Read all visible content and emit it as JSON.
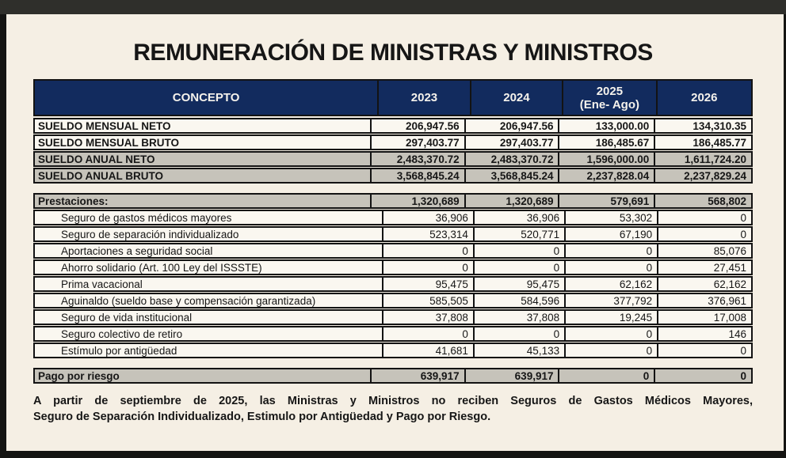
{
  "page": {
    "title": "REMUNERACIÓN DE MINISTRAS Y MINISTROS"
  },
  "colors": {
    "background": "#f5efe4",
    "frame_top": "#2f2f2b",
    "frame_dark": "#141412",
    "header_bg": "#122b5e",
    "header_text": "#f5f2ec",
    "row_light": "#faf7f0",
    "row_gray": "#c6c3ba",
    "border": "#131313",
    "text": "#161616"
  },
  "table": {
    "columns": [
      {
        "label": "CONCEPTO"
      },
      {
        "label": "2023"
      },
      {
        "label": "2024"
      },
      {
        "label": "2025",
        "sublabel": "(Ene- Ago)"
      },
      {
        "label": "2026"
      }
    ],
    "salary_rows": [
      {
        "concept": "SUELDO MENSUAL NETO",
        "values": [
          "206,947.56",
          "206,947.56",
          "133,000.00",
          "134,310.35"
        ],
        "shade": "light"
      },
      {
        "concept": "SUELDO MENSUAL BRUTO",
        "values": [
          "297,403.77",
          "297,403.77",
          "186,485.67",
          "186,485.77"
        ],
        "shade": "light"
      },
      {
        "concept": "SUELDO ANUAL NETO",
        "values": [
          "2,483,370.72",
          "2,483,370.72",
          "1,596,000.00",
          "1,611,724.20"
        ],
        "shade": "gray"
      },
      {
        "concept": "SUELDO ANUAL BRUTO",
        "values": [
          "3,568,845.24",
          "3,568,845.24",
          "2,237,828.04",
          "2,237,829.24"
        ],
        "shade": "gray"
      }
    ],
    "prestaciones": {
      "header": {
        "concept": "Prestaciones:",
        "values": [
          "1,320,689",
          "1,320,689",
          "579,691",
          "568,802"
        ]
      },
      "rows": [
        {
          "concept": "Seguro de gastos médicos mayores",
          "values": [
            "36,906",
            "36,906",
            "53,302",
            "0"
          ]
        },
        {
          "concept": "Seguro de separación individualizado",
          "values": [
            "523,314",
            "520,771",
            "67,190",
            "0"
          ]
        },
        {
          "concept": "Aportaciones a seguridad social",
          "values": [
            "0",
            "0",
            "0",
            "85,076"
          ]
        },
        {
          "concept": "Ahorro solidario (Art. 100 Ley del ISSSTE)",
          "values": [
            "0",
            "0",
            "0",
            "27,451"
          ]
        },
        {
          "concept": "Prima vacacional",
          "values": [
            "95,475",
            "95,475",
            "62,162",
            "62,162"
          ]
        },
        {
          "concept": "Aguinaldo (sueldo base y compensación garantizada)",
          "values": [
            "585,505",
            "584,596",
            "377,792",
            "376,961"
          ]
        },
        {
          "concept": "Seguro de vida institucional",
          "values": [
            "37,808",
            "37,808",
            "19,245",
            "17,008"
          ]
        },
        {
          "concept": "Seguro colectivo de retiro",
          "values": [
            "0",
            "0",
            "0",
            "146"
          ]
        },
        {
          "concept": "Estímulo por antigüedad",
          "values": [
            "41,681",
            "45,133",
            "0",
            "0"
          ]
        }
      ]
    },
    "pago_por_riesgo": {
      "concept": "Pago por riesgo",
      "values": [
        "639,917",
        "639,917",
        "0",
        "0"
      ]
    }
  },
  "footnote": {
    "line1": "A partir de septiembre de 2025, las Ministras y Ministros no reciben Seguros de Gastos Médicos Mayores,",
    "line2": "Seguro de Separación Individualizado, Estimulo por Antigüedad y Pago por Riesgo."
  }
}
